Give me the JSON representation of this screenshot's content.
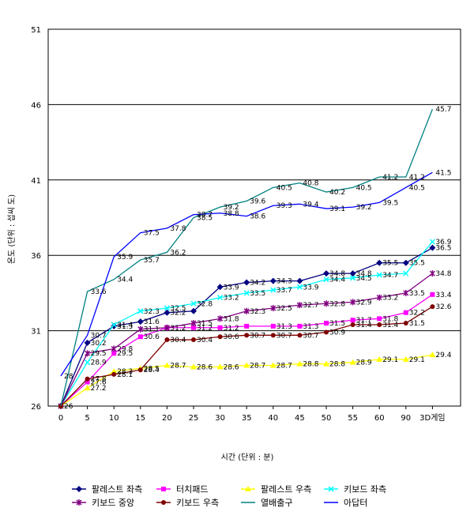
{
  "chart_data": {
    "type": "line",
    "title": "",
    "xlabel": "시간 (단위 : 분)",
    "ylabel": "온도 (단위 : 섭씨 도)",
    "ylim": [
      26,
      51
    ],
    "yticks": [
      "26",
      "31",
      "36",
      "41",
      "46",
      "51"
    ],
    "grid": "horizontal",
    "legend_position": "bottom",
    "categories": [
      "0",
      "5",
      "10",
      "15",
      "20",
      "25",
      "30",
      "35",
      "40",
      "45",
      "50",
      "55",
      "60",
      "90",
      "3D게임"
    ],
    "series": [
      {
        "name": "팔레스트 좌측",
        "color": "#000080",
        "marker": "diamond",
        "values": [
          26,
          30.2,
          31.3,
          31.6,
          32.2,
          32.3,
          33.9,
          34.2,
          34.3,
          34.3,
          34.8,
          34.8,
          35.5,
          35.5,
          36.5
        ],
        "labels": [
          "26",
          "30.2",
          "31.3",
          "31.6",
          "32.2",
          "",
          "33.9",
          "34.2",
          "34.3",
          "",
          "34.8",
          "34.8",
          "35.5",
          "35.5",
          "36.5"
        ]
      },
      {
        "name": "터치패드",
        "color": "#ff00ff",
        "marker": "square",
        "values": [
          26,
          27.6,
          29.5,
          30.6,
          31.2,
          31.2,
          31.2,
          31.3,
          31.3,
          31.3,
          31.5,
          31.7,
          31.8,
          32.2,
          33.4
        ],
        "labels": [
          "",
          "27.6",
          "29.5",
          "30.6",
          "31.2",
          "31.2",
          "31.2",
          "",
          "31.3",
          "31.3",
          "31.5",
          "31.7",
          "31.8",
          "32.2",
          "33.4"
        ]
      },
      {
        "name": "팔레스트 우측",
        "color": "#ffff00",
        "marker": "triangle",
        "values": [
          26,
          27.2,
          28.3,
          28.5,
          28.7,
          28.6,
          28.6,
          28.7,
          28.7,
          28.8,
          28.8,
          28.9,
          29.1,
          29.1,
          29.4
        ],
        "labels": [
          "",
          "27.2",
          "28.3",
          "28.5",
          "28.7",
          "28.6",
          "28.6",
          "28.7",
          "28.7",
          "28.8",
          "28.8",
          "28.9",
          "29.1",
          "29.1",
          "29.4"
        ]
      },
      {
        "name": "키보드 좌측",
        "color": "#00ffff",
        "marker": "x",
        "values": [
          26,
          28.9,
          31.4,
          32.3,
          32.5,
          32.8,
          33.2,
          33.5,
          33.7,
          33.9,
          34.4,
          34.5,
          34.7,
          34.8,
          36.9
        ],
        "labels": [
          "",
          "28.9",
          "31.4",
          "32.3",
          "32.5",
          "32.8",
          "33.2",
          "33.5",
          "33.7",
          "33.9",
          "34.4",
          "34.5",
          "34.7",
          "",
          "36.9"
        ]
      },
      {
        "name": "키보드 중앙",
        "color": "#800080",
        "marker": "star",
        "values": [
          26,
          29.5,
          29.8,
          31.1,
          31.2,
          31.5,
          31.8,
          32.3,
          32.5,
          32.7,
          32.8,
          32.9,
          33.2,
          33.5,
          34.8
        ],
        "labels": [
          "",
          "29.5",
          "29.8",
          "31.1",
          "",
          "31.5",
          "31.8",
          "32.3",
          "32.5",
          "32.7",
          "32.8",
          "32.9",
          "33.2",
          "33.5",
          "34.8"
        ]
      },
      {
        "name": "키보드 우측",
        "color": "#800000",
        "marker": "circle",
        "values": [
          26,
          27.8,
          28.1,
          28.4,
          30.4,
          30.4,
          30.6,
          30.7,
          30.7,
          30.7,
          30.9,
          31.4,
          31.4,
          31.5,
          32.6
        ],
        "labels": [
          "",
          "27.8",
          "28.1",
          "28.4",
          "30.4",
          "30.4",
          "30.6",
          "30.7",
          "30.7",
          "30.7",
          "30.9",
          "31.4",
          "31.4",
          "31.5",
          "32.6"
        ]
      },
      {
        "name": "열배출구",
        "color": "#008080",
        "marker": "none",
        "values": [
          26,
          33.6,
          34.4,
          35.7,
          36.2,
          38.5,
          39.2,
          39.6,
          40.5,
          40.8,
          40.2,
          40.5,
          41.2,
          41.2,
          45.7
        ],
        "labels": [
          "",
          "33.6",
          "34.4",
          "35.7",
          "36.2",
          "38.5",
          "39.2",
          "39.6",
          "40.5",
          "40.8",
          "40.2",
          "40.5",
          "41.2",
          "41.2",
          "45.7"
        ]
      },
      {
        "name": "아답터",
        "color": "#0000ff",
        "marker": "none",
        "values": [
          28,
          30.7,
          35.9,
          37.5,
          37.8,
          38.7,
          38.8,
          38.6,
          39.3,
          39.4,
          39.1,
          39.2,
          39.5,
          40.5,
          41.5
        ],
        "labels": [
          "28",
          "30.7",
          "35.9",
          "37.5",
          "37.8",
          "38.7",
          "38.8",
          "38.6",
          "39.3",
          "39.4",
          "39.1",
          "39.2",
          "39.5",
          "40.5",
          "41.5"
        ]
      }
    ]
  }
}
